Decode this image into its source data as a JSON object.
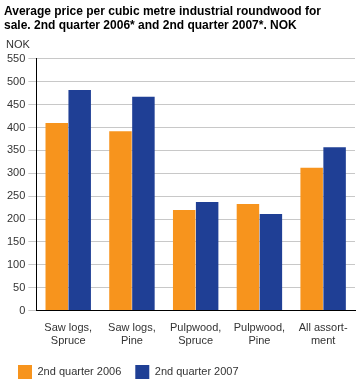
{
  "chart_data": {
    "type": "bar",
    "title": [
      "Average price per cubic metre industrial roundwood for",
      "sale. 2nd quarter 2006* and 2nd quarter 2007*. NOK"
    ],
    "y_label": "NOK",
    "categories": [
      [
        "Saw logs,",
        "Spruce"
      ],
      [
        "Saw logs,",
        "Pine"
      ],
      [
        "Pulpwood,",
        "Spruce"
      ],
      [
        "Pulpwood,",
        "Pine"
      ],
      [
        "All assort-",
        "ment"
      ]
    ],
    "series": [
      {
        "name": "2nd quarter 2006",
        "color": "#f7941d",
        "values": [
          410,
          392,
          220,
          233,
          312
        ]
      },
      {
        "name": "2nd quarter 2007",
        "color": "#1f3f95",
        "values": [
          482,
          467,
          237,
          211,
          357
        ]
      }
    ],
    "ylim": [
      0,
      550
    ],
    "yticks": [
      0,
      50,
      100,
      150,
      200,
      250,
      300,
      350,
      400,
      450,
      500,
      550
    ],
    "grid": true,
    "legend": "bottom"
  }
}
